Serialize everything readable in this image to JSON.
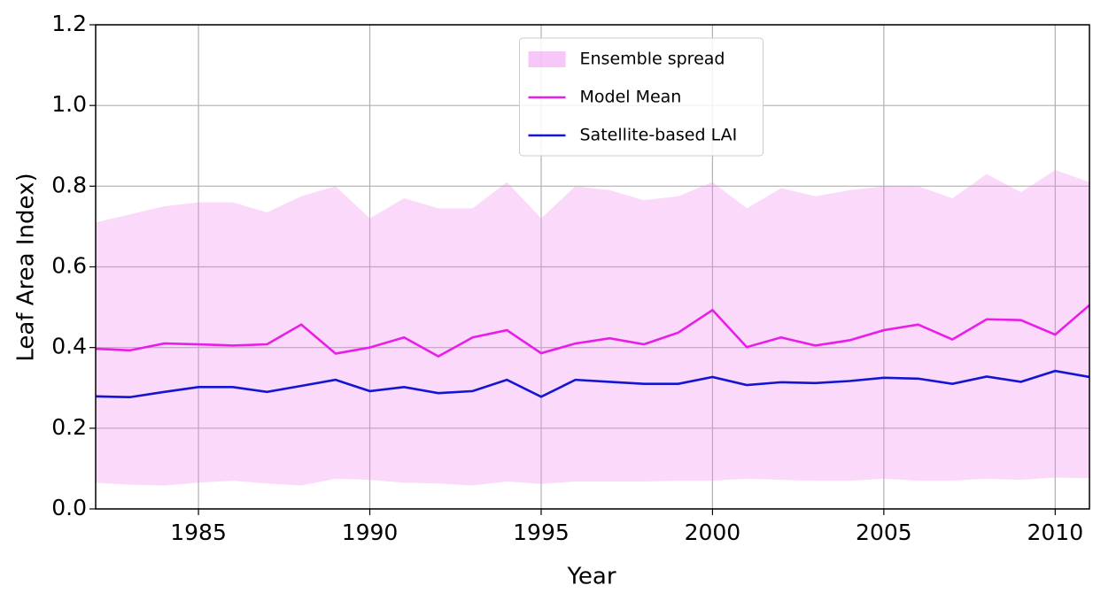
{
  "chart_data": {
    "type": "line",
    "x_label": "Year",
    "y_label": "Leaf Area Index)",
    "x": [
      1982,
      1983,
      1984,
      1985,
      1986,
      1987,
      1988,
      1989,
      1990,
      1991,
      1992,
      1993,
      1994,
      1995,
      1996,
      1997,
      1998,
      1999,
      2000,
      2001,
      2002,
      2003,
      2004,
      2005,
      2006,
      2007,
      2008,
      2009,
      2010,
      2011
    ],
    "series": [
      {
        "name": "Ensemble spread",
        "color": "#ee82ee",
        "alpha": 0.3,
        "upper": [
          0.71,
          0.73,
          0.75,
          0.76,
          0.76,
          0.735,
          0.775,
          0.8,
          0.72,
          0.77,
          0.745,
          0.745,
          0.81,
          0.72,
          0.8,
          0.79,
          0.765,
          0.775,
          0.81,
          0.745,
          0.795,
          0.775,
          0.79,
          0.8,
          0.8,
          0.77,
          0.83,
          0.785,
          0.84,
          0.81
        ],
        "lower": [
          0.065,
          0.06,
          0.058,
          0.065,
          0.07,
          0.063,
          0.058,
          0.075,
          0.072,
          0.065,
          0.063,
          0.058,
          0.068,
          0.062,
          0.068,
          0.068,
          0.068,
          0.07,
          0.07,
          0.075,
          0.072,
          0.07,
          0.07,
          0.075,
          0.07,
          0.07,
          0.075,
          0.072,
          0.078,
          0.076
        ]
      },
      {
        "name": "Model Mean",
        "color": "#e81ee8",
        "values": [
          0.397,
          0.393,
          0.41,
          0.408,
          0.405,
          0.408,
          0.457,
          0.385,
          0.4,
          0.425,
          0.378,
          0.425,
          0.443,
          0.386,
          0.41,
          0.423,
          0.408,
          0.437,
          0.493,
          0.401,
          0.425,
          0.405,
          0.418,
          0.443,
          0.457,
          0.42,
          0.47,
          0.468,
          0.432,
          0.505
        ]
      },
      {
        "name": "Satellite-based LAI",
        "color": "#1414d2",
        "values": [
          0.279,
          0.277,
          0.29,
          0.302,
          0.302,
          0.29,
          0.305,
          0.32,
          0.292,
          0.302,
          0.287,
          0.292,
          0.32,
          0.278,
          0.32,
          0.315,
          0.31,
          0.31,
          0.327,
          0.307,
          0.314,
          0.312,
          0.317,
          0.325,
          0.323,
          0.31,
          0.328,
          0.315,
          0.342,
          0.327
        ]
      }
    ],
    "xlim": [
      1982,
      2011
    ],
    "xticks": [
      1985,
      1990,
      1995,
      2000,
      2005,
      2010
    ],
    "ylim": [
      0,
      1.2
    ],
    "yticks": [
      {
        "value": 0,
        "label": "0.0"
      },
      0.2,
      0.4,
      0.6,
      0.8,
      {
        "value": 1,
        "label": "1.0"
      },
      1.2
    ],
    "grid": true,
    "legend": "upper center"
  }
}
